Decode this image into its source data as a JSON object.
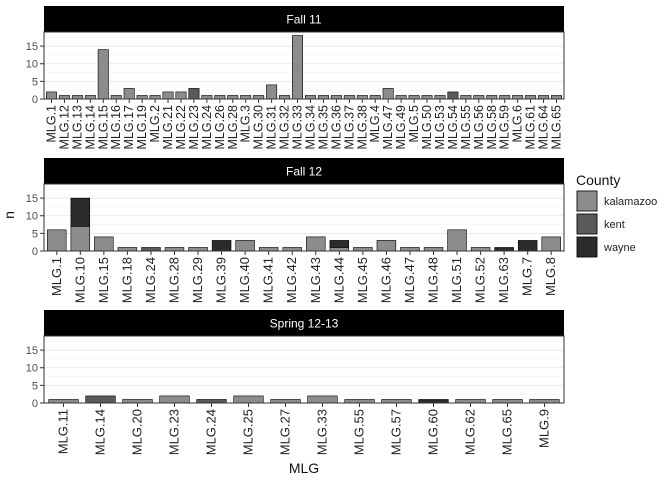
{
  "chart_data": {
    "type": "bar",
    "stacked": true,
    "xlabel": "MLG",
    "ylabel": "n",
    "ylim": [
      0,
      19
    ],
    "yticks": [
      0,
      5,
      10,
      15
    ],
    "grid": true,
    "legend": {
      "title": "County",
      "position": "right",
      "entries": [
        {
          "name": "kalamazoo",
          "color": "#8c8c8c"
        },
        {
          "name": "kent",
          "color": "#5a5a5a"
        },
        {
          "name": "wayne",
          "color": "#2b2b2b"
        }
      ]
    },
    "panels": [
      {
        "title": "Fall 11",
        "categories": [
          "MLG.1",
          "MLG.12",
          "MLG.13",
          "MLG.14",
          "MLG.15",
          "MLG.16",
          "MLG.17",
          "MLG.19",
          "MLG.2",
          "MLG.21",
          "MLG.22",
          "MLG.23",
          "MLG.24",
          "MLG.26",
          "MLG.28",
          "MLG.3",
          "MLG.30",
          "MLG.31",
          "MLG.32",
          "MLG.33",
          "MLG.34",
          "MLG.35",
          "MLG.36",
          "MLG.37",
          "MLG.38",
          "MLG.4",
          "MLG.47",
          "MLG.49",
          "MLG.5",
          "MLG.50",
          "MLG.53",
          "MLG.54",
          "MLG.55",
          "MLG.56",
          "MLG.58",
          "MLG.59",
          "MLG.6",
          "MLG.61",
          "MLG.64",
          "MLG.65"
        ],
        "series": [
          {
            "name": "kalamazoo",
            "values": [
              2,
              1,
              1,
              1,
              14,
              1,
              3,
              1,
              1,
              2,
              2,
              0,
              1,
              1,
              1,
              1,
              1,
              4,
              1,
              18,
              1,
              1,
              1,
              1,
              1,
              1,
              3,
              1,
              1,
              1,
              1,
              0,
              1,
              1,
              1,
              1,
              1,
              1,
              1,
              1
            ]
          },
          {
            "name": "kent",
            "values": [
              0,
              0,
              0,
              0,
              0,
              0,
              0,
              0,
              0,
              0,
              0,
              3,
              0,
              0,
              0,
              0,
              0,
              0,
              0,
              0,
              0,
              0,
              0,
              0,
              0,
              0,
              0,
              0,
              0,
              0,
              0,
              2,
              0,
              0,
              0,
              0,
              0,
              0,
              0,
              0
            ]
          },
          {
            "name": "wayne",
            "values": [
              0,
              0,
              0,
              0,
              0,
              0,
              0,
              0,
              0,
              0,
              0,
              0,
              0,
              0,
              0,
              0,
              0,
              0,
              0,
              0,
              0,
              0,
              0,
              0,
              0,
              0,
              0,
              0,
              0,
              0,
              0,
              0,
              0,
              0,
              0,
              0,
              0,
              0,
              0,
              0
            ]
          }
        ]
      },
      {
        "title": "Fall 12",
        "categories": [
          "MLG.1",
          "MLG.10",
          "MLG.15",
          "MLG.18",
          "MLG.24",
          "MLG.28",
          "MLG.29",
          "MLG.39",
          "MLG.40",
          "MLG.41",
          "MLG.42",
          "MLG.43",
          "MLG.44",
          "MLG.45",
          "MLG.46",
          "MLG.47",
          "MLG.48",
          "MLG.51",
          "MLG.52",
          "MLG.63",
          "MLG.7",
          "MLG.8"
        ],
        "series": [
          {
            "name": "kalamazoo",
            "values": [
              6,
              7,
              4,
              1,
              0,
              1,
              1,
              0,
              3,
              1,
              1,
              4,
              1,
              1,
              3,
              1,
              1,
              6,
              1,
              0,
              0,
              4
            ]
          },
          {
            "name": "kent",
            "values": [
              0,
              0,
              0,
              0,
              1,
              0,
              0,
              0,
              0,
              0,
              0,
              0,
              0,
              0,
              0,
              0,
              0,
              0,
              0,
              0,
              0,
              0
            ]
          },
          {
            "name": "wayne",
            "values": [
              0,
              8,
              0,
              0,
              0,
              0,
              0,
              3,
              0,
              0,
              0,
              0,
              2,
              0,
              0,
              0,
              0,
              0,
              0,
              1,
              3,
              0
            ]
          }
        ]
      },
      {
        "title": "Spring 12-13",
        "categories": [
          "MLG.11",
          "MLG.14",
          "MLG.20",
          "MLG.23",
          "MLG.24",
          "MLG.25",
          "MLG.27",
          "MLG.33",
          "MLG.55",
          "MLG.57",
          "MLG.60",
          "MLG.62",
          "MLG.65",
          "MLG.9"
        ],
        "series": [
          {
            "name": "kalamazoo",
            "values": [
              1,
              0,
              1,
              2,
              0,
              2,
              1,
              2,
              1,
              1,
              0,
              1,
              1,
              1
            ]
          },
          {
            "name": "kent",
            "values": [
              0,
              2,
              0,
              0,
              1,
              0,
              0,
              0,
              0,
              0,
              0,
              0,
              0,
              0
            ]
          },
          {
            "name": "wayne",
            "values": [
              0,
              0,
              0,
              0,
              0,
              0,
              0,
              0,
              0,
              0,
              1,
              0,
              0,
              0
            ]
          }
        ]
      }
    ]
  }
}
